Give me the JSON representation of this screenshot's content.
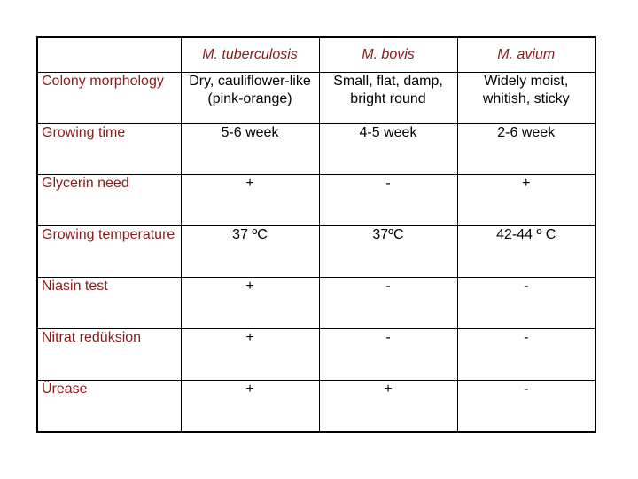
{
  "table": {
    "corner": "",
    "headers": [
      "M. tuberculosis",
      "M. bovis",
      "M. avium"
    ],
    "rows": [
      {
        "label": "Colony morphology",
        "cells": [
          "Dry, cauliflower-like (pink-orange)",
          "Small, flat, damp, bright round",
          "Widely moist, whitish, sticky"
        ]
      },
      {
        "label": "Growing time",
        "cells": [
          "5-6 week",
          "4-5 week",
          "2-6 week"
        ]
      },
      {
        "label": "Glycerin need",
        "cells": [
          "+",
          "-",
          "+"
        ]
      },
      {
        "label": "Growing temperature",
        "cells": [
          "37 ºC",
          "37ºC",
          "42-44 º C"
        ]
      },
      {
        "label": "Niasin test",
        "cells": [
          "+",
          "-",
          "-"
        ]
      },
      {
        "label": "Nitrat redüksion",
        "cells": [
          "+",
          "-",
          "-"
        ]
      },
      {
        "label": "Ürease",
        "cells": [
          "+",
          "+",
          "-"
        ]
      }
    ]
  },
  "colors": {
    "label_text": "#8b1a1a",
    "value_text": "#000000",
    "border": "#000000"
  }
}
